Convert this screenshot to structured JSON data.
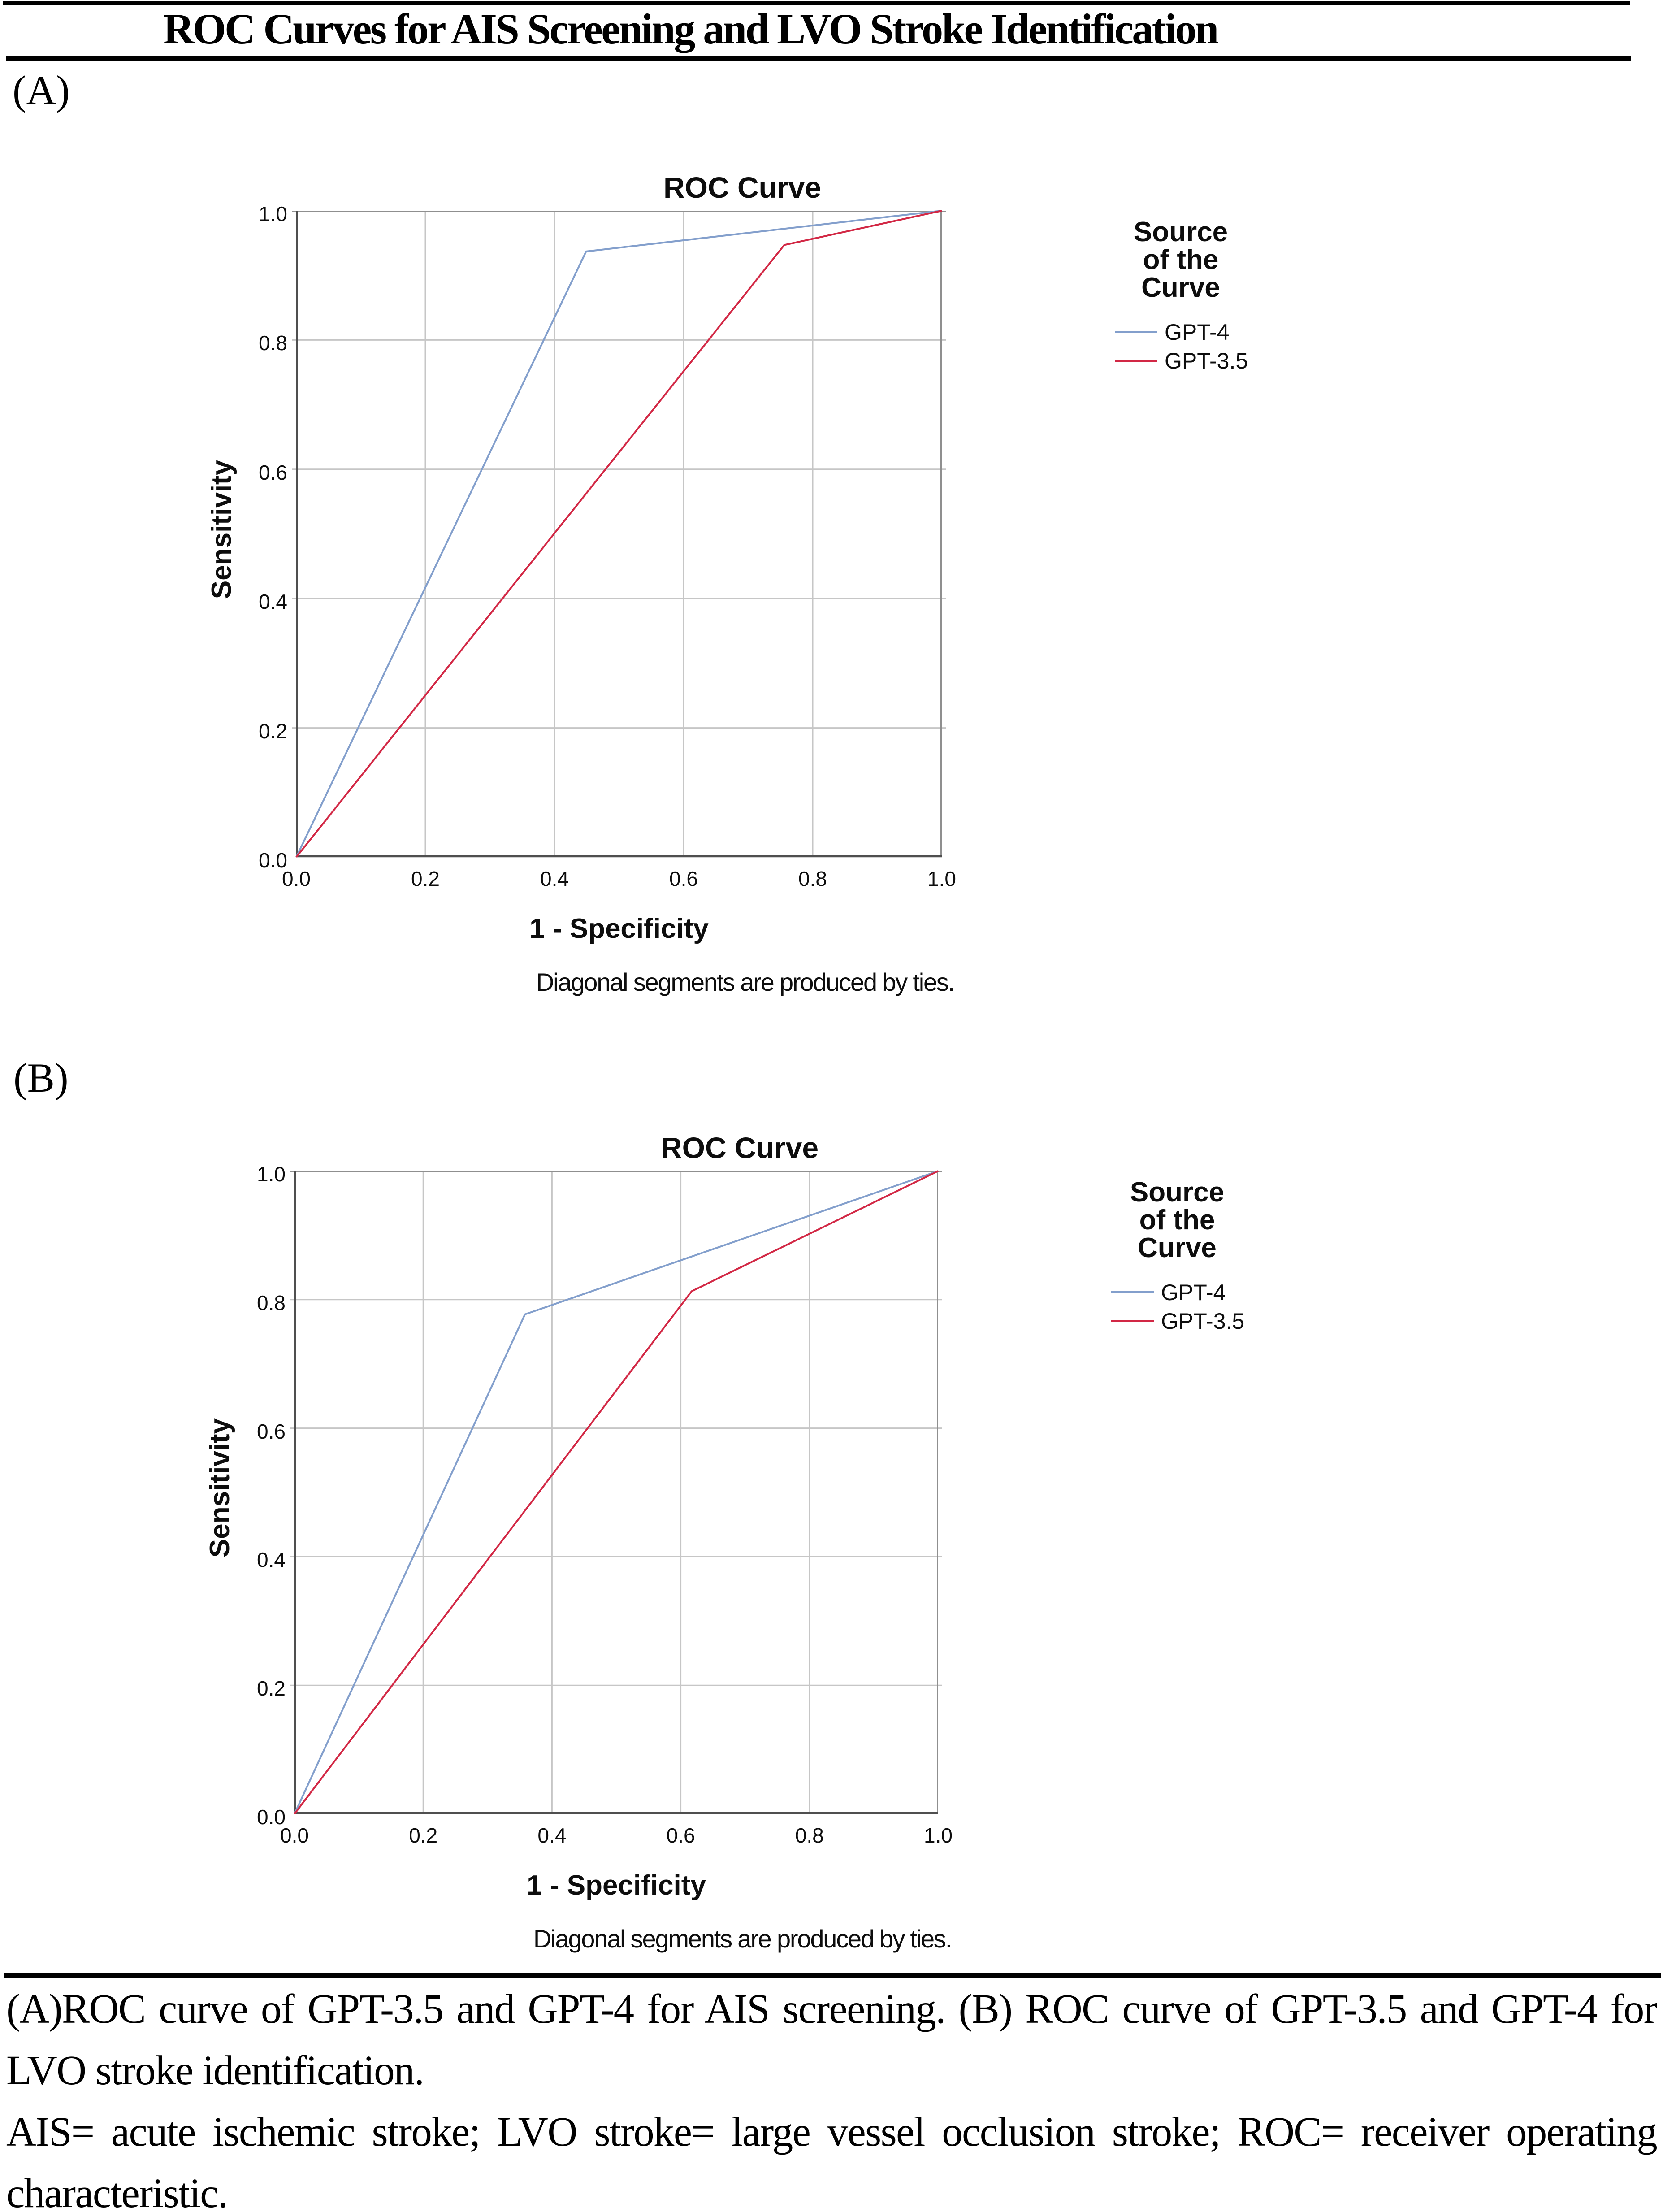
{
  "header": {
    "title": "ROC Curves for AIS Screening and LVO Stroke Identification"
  },
  "panels": {
    "a_label": "(A)",
    "b_label": "(B)"
  },
  "caption": {
    "lines": [
      "(A)ROC curve of GPT-3.5 and GPT-4 for AIS screening. (B) ROC curve of GPT-3.5 and GPT-4 for",
      "LVO stroke identification.",
      "AIS= acute ischemic stroke; LVO stroke= large vessel occlusion stroke; ROC= receiver operating",
      "characteristic."
    ]
  },
  "colors": {
    "gpt4_line": "#839fcc",
    "gpt35_line": "#d22845",
    "gridline": "#c6c6c6",
    "frame": "#8f8f8f",
    "axis": "#4f4f4f",
    "text": "#0d0d0d"
  },
  "chart_data": [
    {
      "type": "line",
      "panel": "A",
      "title": "ROC Curve",
      "xlabel": "1 - Specificity",
      "ylabel": "Sensitivity",
      "footnote": "Diagonal segments are produced by ties.",
      "xlim": [
        0.0,
        1.0
      ],
      "ylim": [
        0.0,
        1.0
      ],
      "x_ticks": [
        "0.0",
        "0.2",
        "0.4",
        "0.6",
        "0.8",
        "1.0"
      ],
      "y_ticks": [
        "0.0",
        "0.2",
        "0.4",
        "0.6",
        "0.8",
        "1.0"
      ],
      "grid": true,
      "legend_position": "right",
      "legend_title_lines": [
        "Source",
        "of the",
        "Curve"
      ],
      "series": [
        {
          "name": "GPT-4",
          "color": "#839fcc",
          "points": [
            [
              0.0,
              0.0
            ],
            [
              0.449,
              0.937
            ],
            [
              1.0,
              1.0
            ]
          ]
        },
        {
          "name": "GPT-3.5",
          "color": "#d22845",
          "points": [
            [
              0.0,
              0.0
            ],
            [
              0.756,
              0.947
            ],
            [
              1.0,
              1.0
            ]
          ]
        }
      ]
    },
    {
      "type": "line",
      "panel": "B",
      "title": "ROC Curve",
      "xlabel": "1 - Specificity",
      "ylabel": "Sensitivity",
      "footnote": "Diagonal segments are produced by ties.",
      "xlim": [
        0.0,
        1.0
      ],
      "ylim": [
        0.0,
        1.0
      ],
      "x_ticks": [
        "0.0",
        "0.2",
        "0.4",
        "0.6",
        "0.8",
        "1.0"
      ],
      "y_ticks": [
        "0.0",
        "0.2",
        "0.4",
        "0.6",
        "0.8",
        "1.0"
      ],
      "grid": true,
      "legend_position": "right",
      "legend_title_lines": [
        "Source",
        "of the",
        "Curve"
      ],
      "series": [
        {
          "name": "GPT-4",
          "color": "#839fcc",
          "points": [
            [
              0.0,
              0.0
            ],
            [
              0.358,
              0.777
            ],
            [
              1.0,
              1.0
            ]
          ]
        },
        {
          "name": "GPT-3.5",
          "color": "#d22845",
          "points": [
            [
              0.0,
              0.0
            ],
            [
              0.617,
              0.813
            ],
            [
              1.0,
              1.0
            ]
          ]
        }
      ]
    }
  ]
}
